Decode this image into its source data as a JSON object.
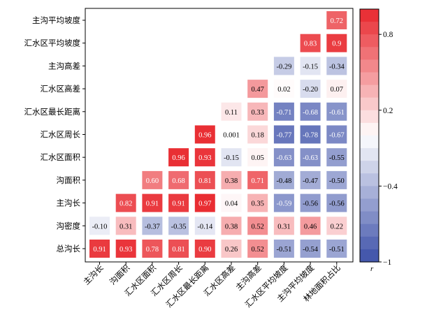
{
  "chart_data": {
    "type": "heatmap",
    "variables": [
      "主沟长",
      "沟面积",
      "汇水区面积",
      "汇水区周长",
      "汇水区最长距离",
      "汇水区高差",
      "主沟高差",
      "汇水区平均坡度",
      "主沟平均坡度",
      "林地面积占比"
    ],
    "row_labels": [
      "主沟平均坡度",
      "汇水区平均坡度",
      "主沟高差",
      "汇水区高差",
      "汇水区最长距离",
      "汇水区周长",
      "汇水区面积",
      "沟面积",
      "主沟长",
      "沟密度",
      "总沟长"
    ],
    "col_labels": [
      "主沟长",
      "沟面积",
      "汇水区面积",
      "汇水区周长",
      "汇水区最长距离",
      "汇水区高差",
      "主沟高差",
      "汇水区平均坡度",
      "主沟平均坡度",
      "林地面积占比"
    ],
    "cells": [
      {
        "row": "主沟平均坡度",
        "values": [
          null,
          null,
          null,
          null,
          null,
          null,
          null,
          null,
          null,
          0.72
        ]
      },
      {
        "row": "汇水区平均坡度",
        "values": [
          null,
          null,
          null,
          null,
          null,
          null,
          null,
          null,
          0.83,
          0.9
        ]
      },
      {
        "row": "主沟高差",
        "values": [
          null,
          null,
          null,
          null,
          null,
          null,
          null,
          -0.29,
          -0.15,
          -0.34
        ]
      },
      {
        "row": "汇水区高差",
        "values": [
          null,
          null,
          null,
          null,
          null,
          null,
          0.47,
          0.02,
          -0.2,
          0.07
        ]
      },
      {
        "row": "汇水区最长距离",
        "values": [
          null,
          null,
          null,
          null,
          null,
          0.11,
          0.33,
          -0.71,
          -0.68,
          -0.61
        ]
      },
      {
        "row": "汇水区周长",
        "values": [
          null,
          null,
          null,
          null,
          0.96,
          0.001,
          0.18,
          -0.77,
          -0.78,
          -0.67
        ]
      },
      {
        "row": "汇水区面积",
        "values": [
          null,
          null,
          null,
          0.96,
          0.93,
          -0.15,
          0.05,
          -0.63,
          -0.63,
          -0.55
        ]
      },
      {
        "row": "沟面积",
        "values": [
          null,
          null,
          0.6,
          0.68,
          0.81,
          0.38,
          0.71,
          -0.48,
          -0.47,
          -0.5
        ]
      },
      {
        "row": "主沟长",
        "values": [
          null,
          0.82,
          0.91,
          0.91,
          0.97,
          0.04,
          0.35,
          -0.59,
          -0.56,
          -0.56
        ]
      },
      {
        "row": "沟密度",
        "values": [
          -0.1,
          0.31,
          -0.37,
          -0.35,
          -0.14,
          0.38,
          0.52,
          0.31,
          0.46,
          0.22
        ]
      },
      {
        "row": "总沟长",
        "values": [
          0.91,
          0.93,
          0.78,
          0.81,
          0.9,
          0.26,
          0.52,
          -0.51,
          -0.54,
          -0.51
        ]
      }
    ],
    "cell_text": [
      [
        null,
        null,
        null,
        null,
        null,
        null,
        null,
        null,
        null,
        "0.72"
      ],
      [
        null,
        null,
        null,
        null,
        null,
        null,
        null,
        null,
        "0.83",
        "0.9"
      ],
      [
        null,
        null,
        null,
        null,
        null,
        null,
        null,
        "-0.29",
        "-0.15",
        "-0.34"
      ],
      [
        null,
        null,
        null,
        null,
        null,
        null,
        "0.47",
        "0.02",
        "-0.20",
        "0.07"
      ],
      [
        null,
        null,
        null,
        null,
        null,
        "0.11",
        "0.33",
        "-0.71",
        "-0.68",
        "-0.61"
      ],
      [
        null,
        null,
        null,
        null,
        "0.96",
        "0.001",
        "0.18",
        "-0.77",
        "-0.78",
        "-0.67"
      ],
      [
        null,
        null,
        null,
        "0.96",
        "0.93",
        "-0.15",
        "0.05",
        "-0.63",
        "-0.63",
        "-0.55"
      ],
      [
        null,
        null,
        "0.60",
        "0.68",
        "0.81",
        "0.38",
        "0.71",
        "-0.48",
        "-0.47",
        "-0.50"
      ],
      [
        null,
        "0.82",
        "0.91",
        "0.91",
        "0.97",
        "0.04",
        "0.35",
        "-0.59",
        "-0.56",
        "-0.56"
      ],
      [
        "-0.10",
        "0.31",
        "-0.37",
        "-0.35",
        "-0.14",
        "0.38",
        "0.52",
        "0.31",
        "0.46",
        "0.22"
      ],
      [
        "0.91",
        "0.93",
        "0.78",
        "0.81",
        "0.90",
        "0.26",
        "0.52",
        "-0.51",
        "-0.54",
        "-0.51"
      ]
    ],
    "color_scale": {
      "range": [
        -1,
        1
      ],
      "low_color": "#3b4fa8",
      "mid_color": "#ffffff",
      "high_color": "#e8262c",
      "ticks": [
        0.8,
        0.2,
        -0.4,
        -1
      ],
      "tick_labels": [
        "0.8",
        "0.2",
        "−0.4",
        "−1"
      ],
      "label": "r"
    }
  }
}
